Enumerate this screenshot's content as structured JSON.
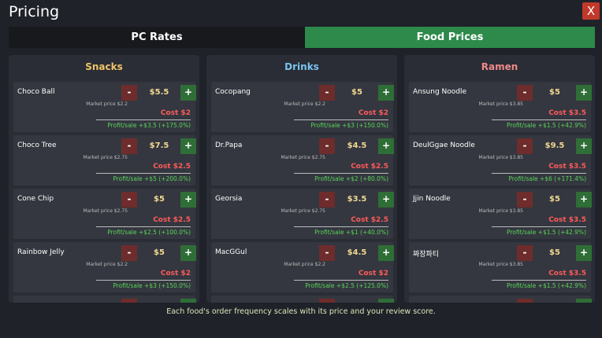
{
  "header": {
    "title": "Pricing",
    "close": "X"
  },
  "tabs": [
    "PC Rates",
    "Food Prices"
  ],
  "controls": {
    "minus": "-",
    "plus": "+"
  },
  "columns": [
    {
      "title": "Snacks",
      "items": [
        {
          "name": "Choco Ball",
          "price": "$5.5",
          "market": "Market price $2.2",
          "cost": "Cost $2",
          "profit": "Profit/sale +$3.5 (+175.0%)"
        },
        {
          "name": "Choco Tree",
          "price": "$7.5",
          "market": "Market price $2.75",
          "cost": "Cost $2.5",
          "profit": "Profit/sale +$5 (+200.0%)"
        },
        {
          "name": "Cone Chip",
          "price": "$5",
          "market": "Market price $2.75",
          "cost": "Cost $2.5",
          "profit": "Profit/sale +$2.5 (+100.0%)"
        },
        {
          "name": "Rainbow Jelly",
          "price": "$5",
          "market": "Market price $2.2",
          "cost": "Cost $2",
          "profit": "Profit/sale +$3 (+150.0%)"
        }
      ]
    },
    {
      "title": "Drinks",
      "items": [
        {
          "name": "Cocopang",
          "price": "$5",
          "market": "Market price $2.2",
          "cost": "Cost $2",
          "profit": "Profit/sale +$3 (+150.0%)"
        },
        {
          "name": "Dr.Papa",
          "price": "$4.5",
          "market": "Market price $2.75",
          "cost": "Cost $2.5",
          "profit": "Profit/sale +$2 (+80.0%)"
        },
        {
          "name": "Georsia",
          "price": "$3.5",
          "market": "Market price $2.75",
          "cost": "Cost $2.5",
          "profit": "Profit/sale +$1 (+40.0%)"
        },
        {
          "name": "MacGGul",
          "price": "$4.5",
          "market": "Market price $2.2",
          "cost": "Cost $2",
          "profit": "Profit/sale +$2.5 (+125.0%)"
        }
      ]
    },
    {
      "title": "Ramen",
      "items": [
        {
          "name": "Ansung Noodle",
          "price": "$5",
          "market": "Market price $3.85",
          "cost": "Cost $3.5",
          "profit": "Profit/sale +$1.5 (+42.9%)"
        },
        {
          "name": "DeulGgae Noodle",
          "price": "$9.5",
          "market": "Market price $3.85",
          "cost": "Cost $3.5",
          "profit": "Profit/sale +$6 (+171.4%)"
        },
        {
          "name": "Jjin Noodle",
          "price": "$5",
          "market": "Market price $3.85",
          "cost": "Cost $3.5",
          "profit": "Profit/sale +$1.5 (+42.9%)"
        },
        {
          "name": "짜장파티",
          "price": "$5",
          "market": "Market price $3.85",
          "cost": "Cost $3.5",
          "profit": "Profit/sale +$1.5 (+42.9%)"
        }
      ]
    }
  ],
  "footer": "Each food's order frequency scales with its price and your review score."
}
